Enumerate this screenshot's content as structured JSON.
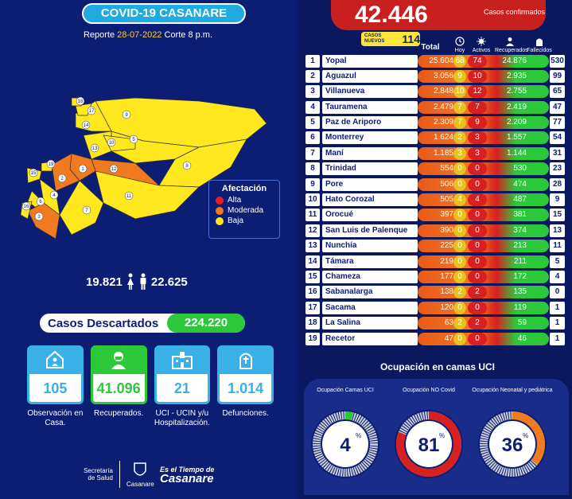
{
  "header": {
    "title": "COVID-19 CASANARE",
    "report_prefix": "Reporte",
    "report_date": "28-07-2022",
    "report_suffix": "Corte 8 p.m."
  },
  "legend": {
    "title": "Afectación",
    "items": [
      {
        "label": "Alta",
        "color": "#e02020"
      },
      {
        "label": "Moderada",
        "color": "#f07a1e"
      },
      {
        "label": "Baja",
        "color": "#ffe81e"
      }
    ]
  },
  "map_labels": [
    "18",
    "17",
    "9",
    "14",
    "13",
    "10",
    "5",
    "15",
    "19",
    "2",
    "1",
    "12",
    "8",
    "4",
    "6",
    "16",
    "3",
    "7",
    "11"
  ],
  "gender": {
    "women": "19.821",
    "men": "22.625"
  },
  "discarded": {
    "label": "Casos  Descartados",
    "value": "224.220"
  },
  "boxes": [
    {
      "value": "105",
      "caption": "Observación en Casa.",
      "color": "#3ab0e8",
      "icon": "house-icon"
    },
    {
      "value": "41.096",
      "caption": "Recuperados.",
      "color": "#2bc93a",
      "icon": "person-mask-icon"
    },
    {
      "value": "21",
      "caption": "UCI - UCIN y/u Hospitalización.",
      "color": "#3ab0e8",
      "icon": "hospital-icon"
    },
    {
      "value": "1.014",
      "caption": "Defunciones.",
      "color": "#3ab0e8",
      "icon": "tombstone-icon"
    }
  ],
  "footer": {
    "secretaria": "Secretaría de Salud",
    "gob": "Casanare",
    "slogan_top": "Es el Tiempo de",
    "slogan_main": "Casanare"
  },
  "totals": {
    "confirmed": "42.446",
    "confirmed_label": "Casos confirmados",
    "new_label": "CASOS NUEVOS",
    "new_value": "114"
  },
  "columns": {
    "total": "Total",
    "hoy": "Hoy",
    "activos": "Activos",
    "recuperados": "Recuperados",
    "fallecidos": "Fallecidos"
  },
  "municipalities": [
    {
      "n": "1",
      "name": "Yopal",
      "total": "25.604",
      "hoy": "68",
      "activos": "74",
      "rec": "24.876",
      "fal": "530"
    },
    {
      "n": "2",
      "name": "Aguazul",
      "total": "3.056",
      "hoy": "9",
      "activos": "10",
      "rec": "2.935",
      "fal": "99"
    },
    {
      "n": "3",
      "name": "Villanueva",
      "total": "2.848",
      "hoy": "10",
      "activos": "12",
      "rec": "2.755",
      "fal": "65"
    },
    {
      "n": "4",
      "name": "Tauramena",
      "total": "2.479",
      "hoy": "7",
      "activos": "7",
      "rec": "2.419",
      "fal": "47"
    },
    {
      "n": "5",
      "name": "Paz de Ariporo",
      "total": "2.309",
      "hoy": "7",
      "activos": "9",
      "rec": "2.209",
      "fal": "77"
    },
    {
      "n": "6",
      "name": "Monterrey",
      "total": "1.624",
      "hoy": "2",
      "activos": "3",
      "rec": "1.557",
      "fal": "54"
    },
    {
      "n": "7",
      "name": "Maní",
      "total": "1.185",
      "hoy": "3",
      "activos": "3",
      "rec": "1.144",
      "fal": "31"
    },
    {
      "n": "8",
      "name": "Trinidad",
      "total": "554",
      "hoy": "0",
      "activos": "0",
      "rec": "530",
      "fal": "23"
    },
    {
      "n": "9",
      "name": "Pore",
      "total": "506",
      "hoy": "0",
      "activos": "0",
      "rec": "474",
      "fal": "28"
    },
    {
      "n": "10",
      "name": "Hato Corozal",
      "total": "505",
      "hoy": "4",
      "activos": "4",
      "rec": "487",
      "fal": "9"
    },
    {
      "n": "11",
      "name": "Orocué",
      "total": "397",
      "hoy": "0",
      "activos": "0",
      "rec": "381",
      "fal": "15"
    },
    {
      "n": "12",
      "name": "San Luis de Palenque",
      "total": "390",
      "hoy": "0",
      "activos": "0",
      "rec": "374",
      "fal": "13"
    },
    {
      "n": "13",
      "name": "Nunchía",
      "total": "225",
      "hoy": "0",
      "activos": "0",
      "rec": "213",
      "fal": "11"
    },
    {
      "n": "14",
      "name": "Támara",
      "total": "219",
      "hoy": "0",
      "activos": "0",
      "rec": "211",
      "fal": "5"
    },
    {
      "n": "15",
      "name": "Chameza",
      "total": "177",
      "hoy": "0",
      "activos": "0",
      "rec": "172",
      "fal": "4"
    },
    {
      "n": "16",
      "name": "Sabanalarga",
      "total": "138",
      "hoy": "2",
      "activos": "2",
      "rec": "135",
      "fal": "0"
    },
    {
      "n": "17",
      "name": "Sacama",
      "total": "120",
      "hoy": "0",
      "activos": "0",
      "rec": "119",
      "fal": "1"
    },
    {
      "n": "18",
      "name": "La Salina",
      "total": "63",
      "hoy": "2",
      "activos": "2",
      "rec": "59",
      "fal": "1"
    },
    {
      "n": "19",
      "name": "Recetor",
      "total": "47",
      "hoy": "0",
      "activos": "0",
      "rec": "46",
      "fal": "1"
    }
  ],
  "uci": {
    "title": "Ocupación en camas UCI",
    "gauges": [
      {
        "label": "Ocupación Camas UCI",
        "value": "4",
        "fraction": 0.04,
        "color": "#2bc93a"
      },
      {
        "label": "Ocupación NO Covid",
        "value": "81",
        "fraction": 0.81,
        "color": "#d92020"
      },
      {
        "label": "Ocupación Neonatal y pediátrica",
        "value": "36",
        "fraction": 0.36,
        "color": "#f07a1e"
      }
    ]
  }
}
